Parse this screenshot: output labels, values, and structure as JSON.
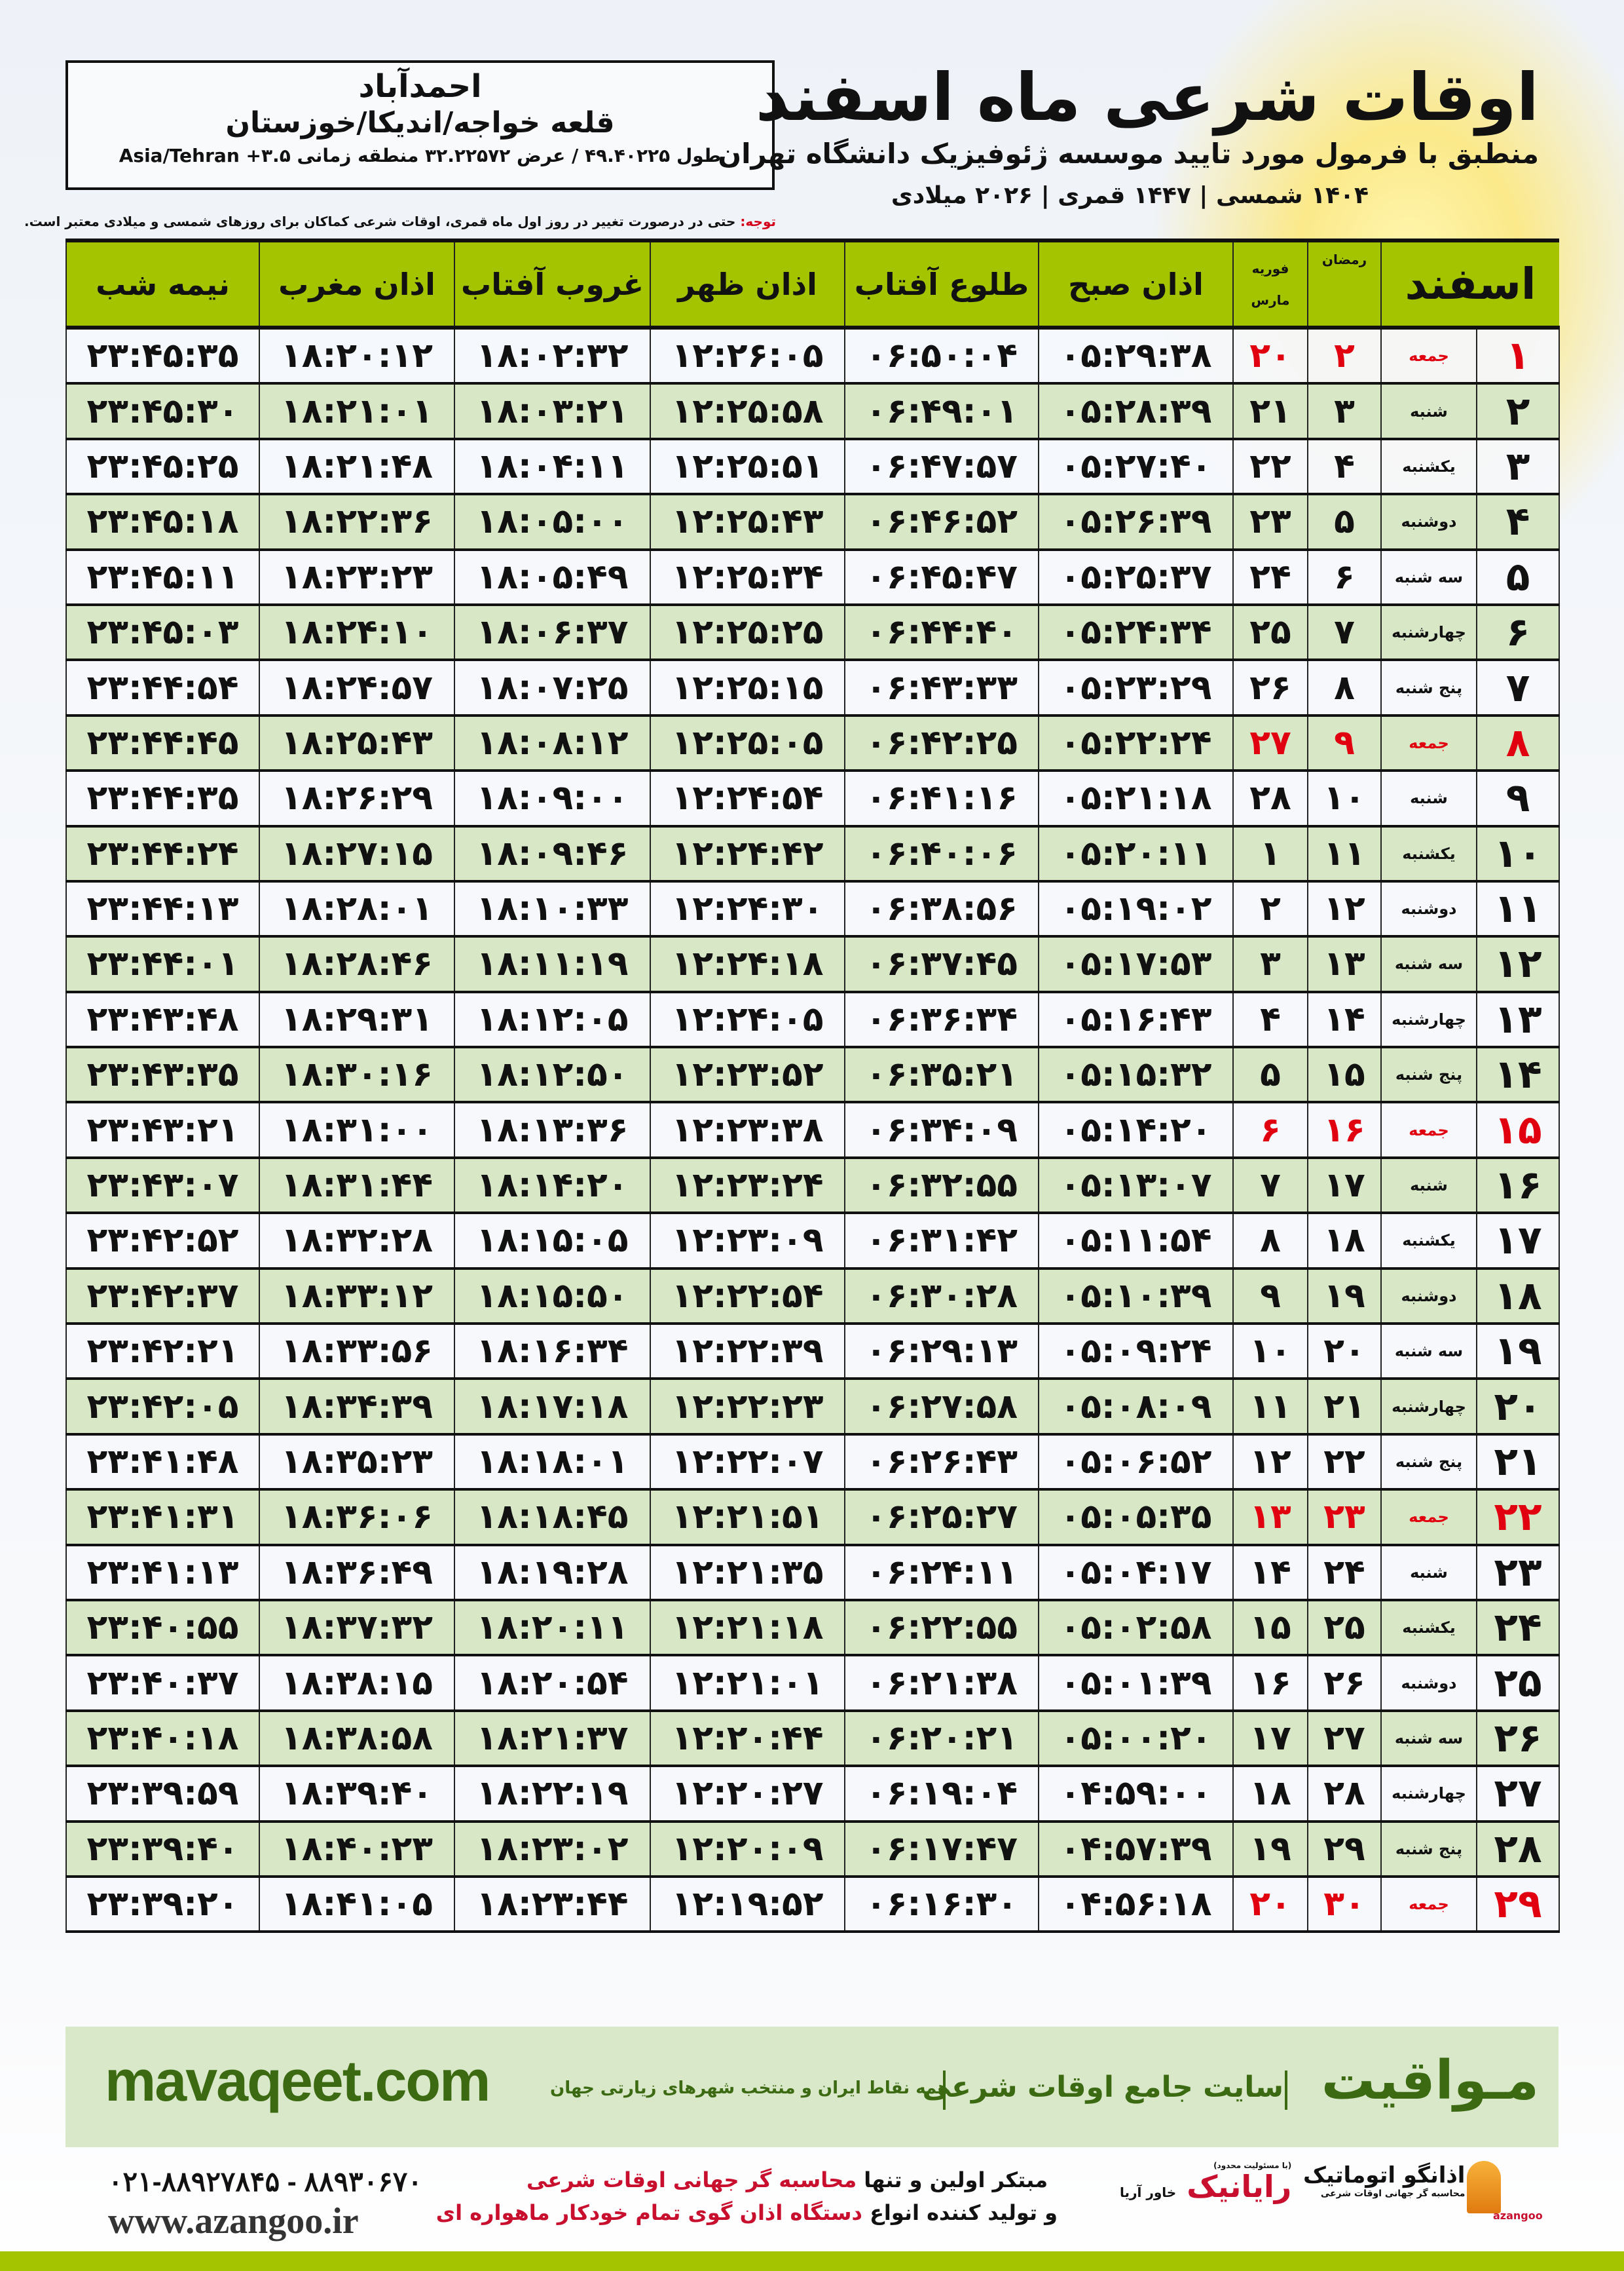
{
  "header": {
    "title": "اوقات شرعی ماه اسفند",
    "subtitle": "منطبق با فرمول مورد تایید موسسه ژئوفیزیک دانشگاه تهران",
    "dates": "۱۴۰۴ شمسی | ۱۴۴۷ قمری | ۲۰۲۶ میلادی"
  },
  "location": {
    "city": "احمدآباد",
    "region": "قلعه خواجه/اندیکا/خوزستان",
    "coords": "طول ۴۹.۴۰۲۲۵ / عرض ۳۲.۲۲۵۷۲ منطقه زمانی ۳.۵+ Asia/Tehran"
  },
  "note": {
    "label": "توجه:",
    "text": " حتی در درصورت تغییر در روز اول ماه قمری، اوقات شرعی کماکان برای روزهای شمسی و میلادی معتبر است."
  },
  "colors": {
    "header_green": "#a4c400",
    "row_green": "#d8e7c6",
    "friday_red": "#e10010",
    "brand_green": "#3b6a12"
  },
  "table": {
    "columns": {
      "month": "اسفند",
      "ramadan": "رمضان",
      "feb": "فوریه",
      "march": "مارس",
      "fajr": "اذان صبح",
      "sunrise": "طلوع آفتاب",
      "dhuhr": "اذان ظهر",
      "sunset": "غروب آفتاب",
      "maghrib": "اذان مغرب",
      "midnight": "نیمه شب"
    },
    "rows": [
      {
        "day": "۱",
        "weekday": "جمعه",
        "ramadan": "۲",
        "greg": "۲۰",
        "fajr": "۰۵:۲۹:۳۸",
        "sunrise": "۰۶:۵۰:۰۴",
        "dhuhr": "۱۲:۲۶:۰۵",
        "sunset": "۱۸:۰۲:۳۲",
        "maghrib": "۱۸:۲۰:۱۲",
        "midnight": "۲۳:۴۵:۳۵",
        "friday": true
      },
      {
        "day": "۲",
        "weekday": "شنبه",
        "ramadan": "۳",
        "greg": "۲۱",
        "fajr": "۰۵:۲۸:۳۹",
        "sunrise": "۰۶:۴۹:۰۱",
        "dhuhr": "۱۲:۲۵:۵۸",
        "sunset": "۱۸:۰۳:۲۱",
        "maghrib": "۱۸:۲۱:۰۱",
        "midnight": "۲۳:۴۵:۳۰"
      },
      {
        "day": "۳",
        "weekday": "یکشنبه",
        "ramadan": "۴",
        "greg": "۲۲",
        "fajr": "۰۵:۲۷:۴۰",
        "sunrise": "۰۶:۴۷:۵۷",
        "dhuhr": "۱۲:۲۵:۵۱",
        "sunset": "۱۸:۰۴:۱۱",
        "maghrib": "۱۸:۲۱:۴۸",
        "midnight": "۲۳:۴۵:۲۵"
      },
      {
        "day": "۴",
        "weekday": "دوشنبه",
        "ramadan": "۵",
        "greg": "۲۳",
        "fajr": "۰۵:۲۶:۳۹",
        "sunrise": "۰۶:۴۶:۵۲",
        "dhuhr": "۱۲:۲۵:۴۳",
        "sunset": "۱۸:۰۵:۰۰",
        "maghrib": "۱۸:۲۲:۳۶",
        "midnight": "۲۳:۴۵:۱۸"
      },
      {
        "day": "۵",
        "weekday": "سه شنبه",
        "ramadan": "۶",
        "greg": "۲۴",
        "fajr": "۰۵:۲۵:۳۷",
        "sunrise": "۰۶:۴۵:۴۷",
        "dhuhr": "۱۲:۲۵:۳۴",
        "sunset": "۱۸:۰۵:۴۹",
        "maghrib": "۱۸:۲۳:۲۳",
        "midnight": "۲۳:۴۵:۱۱"
      },
      {
        "day": "۶",
        "weekday": "چهارشنبه",
        "ramadan": "۷",
        "greg": "۲۵",
        "fajr": "۰۵:۲۴:۳۴",
        "sunrise": "۰۶:۴۴:۴۰",
        "dhuhr": "۱۲:۲۵:۲۵",
        "sunset": "۱۸:۰۶:۳۷",
        "maghrib": "۱۸:۲۴:۱۰",
        "midnight": "۲۳:۴۵:۰۳"
      },
      {
        "day": "۷",
        "weekday": "پنج شنبه",
        "ramadan": "۸",
        "greg": "۲۶",
        "fajr": "۰۵:۲۳:۲۹",
        "sunrise": "۰۶:۴۳:۳۳",
        "dhuhr": "۱۲:۲۵:۱۵",
        "sunset": "۱۸:۰۷:۲۵",
        "maghrib": "۱۸:۲۴:۵۷",
        "midnight": "۲۳:۴۴:۵۴"
      },
      {
        "day": "۸",
        "weekday": "جمعه",
        "ramadan": "۹",
        "greg": "۲۷",
        "fajr": "۰۵:۲۲:۲۴",
        "sunrise": "۰۶:۴۲:۲۵",
        "dhuhr": "۱۲:۲۵:۰۵",
        "sunset": "۱۸:۰۸:۱۲",
        "maghrib": "۱۸:۲۵:۴۳",
        "midnight": "۲۳:۴۴:۴۵",
        "friday": true
      },
      {
        "day": "۹",
        "weekday": "شنبه",
        "ramadan": "۱۰",
        "greg": "۲۸",
        "fajr": "۰۵:۲۱:۱۸",
        "sunrise": "۰۶:۴۱:۱۶",
        "dhuhr": "۱۲:۲۴:۵۴",
        "sunset": "۱۸:۰۹:۰۰",
        "maghrib": "۱۸:۲۶:۲۹",
        "midnight": "۲۳:۴۴:۳۵"
      },
      {
        "day": "۱۰",
        "weekday": "یکشنبه",
        "ramadan": "۱۱",
        "greg": "۱",
        "fajr": "۰۵:۲۰:۱۱",
        "sunrise": "۰۶:۴۰:۰۶",
        "dhuhr": "۱۲:۲۴:۴۲",
        "sunset": "۱۸:۰۹:۴۶",
        "maghrib": "۱۸:۲۷:۱۵",
        "midnight": "۲۳:۴۴:۲۴"
      },
      {
        "day": "۱۱",
        "weekday": "دوشنبه",
        "ramadan": "۱۲",
        "greg": "۲",
        "fajr": "۰۵:۱۹:۰۲",
        "sunrise": "۰۶:۳۸:۵۶",
        "dhuhr": "۱۲:۲۴:۳۰",
        "sunset": "۱۸:۱۰:۳۳",
        "maghrib": "۱۸:۲۸:۰۱",
        "midnight": "۲۳:۴۴:۱۳"
      },
      {
        "day": "۱۲",
        "weekday": "سه شنبه",
        "ramadan": "۱۳",
        "greg": "۳",
        "fajr": "۰۵:۱۷:۵۳",
        "sunrise": "۰۶:۳۷:۴۵",
        "dhuhr": "۱۲:۲۴:۱۸",
        "sunset": "۱۸:۱۱:۱۹",
        "maghrib": "۱۸:۲۸:۴۶",
        "midnight": "۲۳:۴۴:۰۱"
      },
      {
        "day": "۱۳",
        "weekday": "چهارشنبه",
        "ramadan": "۱۴",
        "greg": "۴",
        "fajr": "۰۵:۱۶:۴۳",
        "sunrise": "۰۶:۳۶:۳۴",
        "dhuhr": "۱۲:۲۴:۰۵",
        "sunset": "۱۸:۱۲:۰۵",
        "maghrib": "۱۸:۲۹:۳۱",
        "midnight": "۲۳:۴۳:۴۸"
      },
      {
        "day": "۱۴",
        "weekday": "پنج شنبه",
        "ramadan": "۱۵",
        "greg": "۵",
        "fajr": "۰۵:۱۵:۳۲",
        "sunrise": "۰۶:۳۵:۲۱",
        "dhuhr": "۱۲:۲۳:۵۲",
        "sunset": "۱۸:۱۲:۵۰",
        "maghrib": "۱۸:۳۰:۱۶",
        "midnight": "۲۳:۴۳:۳۵"
      },
      {
        "day": "۱۵",
        "weekday": "جمعه",
        "ramadan": "۱۶",
        "greg": "۶",
        "fajr": "۰۵:۱۴:۲۰",
        "sunrise": "۰۶:۳۴:۰۹",
        "dhuhr": "۱۲:۲۳:۳۸",
        "sunset": "۱۸:۱۳:۳۶",
        "maghrib": "۱۸:۳۱:۰۰",
        "midnight": "۲۳:۴۳:۲۱",
        "friday": true
      },
      {
        "day": "۱۶",
        "weekday": "شنبه",
        "ramadan": "۱۷",
        "greg": "۷",
        "fajr": "۰۵:۱۳:۰۷",
        "sunrise": "۰۶:۳۲:۵۵",
        "dhuhr": "۱۲:۲۳:۲۴",
        "sunset": "۱۸:۱۴:۲۰",
        "maghrib": "۱۸:۳۱:۴۴",
        "midnight": "۲۳:۴۳:۰۷"
      },
      {
        "day": "۱۷",
        "weekday": "یکشنبه",
        "ramadan": "۱۸",
        "greg": "۸",
        "fajr": "۰۵:۱۱:۵۴",
        "sunrise": "۰۶:۳۱:۴۲",
        "dhuhr": "۱۲:۲۳:۰۹",
        "sunset": "۱۸:۱۵:۰۵",
        "maghrib": "۱۸:۳۲:۲۸",
        "midnight": "۲۳:۴۲:۵۲"
      },
      {
        "day": "۱۸",
        "weekday": "دوشنبه",
        "ramadan": "۱۹",
        "greg": "۹",
        "fajr": "۰۵:۱۰:۳۹",
        "sunrise": "۰۶:۳۰:۲۸",
        "dhuhr": "۱۲:۲۲:۵۴",
        "sunset": "۱۸:۱۵:۵۰",
        "maghrib": "۱۸:۳۳:۱۲",
        "midnight": "۲۳:۴۲:۳۷"
      },
      {
        "day": "۱۹",
        "weekday": "سه شنبه",
        "ramadan": "۲۰",
        "greg": "۱۰",
        "fajr": "۰۵:۰۹:۲۴",
        "sunrise": "۰۶:۲۹:۱۳",
        "dhuhr": "۱۲:۲۲:۳۹",
        "sunset": "۱۸:۱۶:۳۴",
        "maghrib": "۱۸:۳۳:۵۶",
        "midnight": "۲۳:۴۲:۲۱"
      },
      {
        "day": "۲۰",
        "weekday": "چهارشنبه",
        "ramadan": "۲۱",
        "greg": "۱۱",
        "fajr": "۰۵:۰۸:۰۹",
        "sunrise": "۰۶:۲۷:۵۸",
        "dhuhr": "۱۲:۲۲:۲۳",
        "sunset": "۱۸:۱۷:۱۸",
        "maghrib": "۱۸:۳۴:۳۹",
        "midnight": "۲۳:۴۲:۰۵"
      },
      {
        "day": "۲۱",
        "weekday": "پنج شنبه",
        "ramadan": "۲۲",
        "greg": "۱۲",
        "fajr": "۰۵:۰۶:۵۲",
        "sunrise": "۰۶:۲۶:۴۳",
        "dhuhr": "۱۲:۲۲:۰۷",
        "sunset": "۱۸:۱۸:۰۱",
        "maghrib": "۱۸:۳۵:۲۳",
        "midnight": "۲۳:۴۱:۴۸"
      },
      {
        "day": "۲۲",
        "weekday": "جمعه",
        "ramadan": "۲۳",
        "greg": "۱۳",
        "fajr": "۰۵:۰۵:۳۵",
        "sunrise": "۰۶:۲۵:۲۷",
        "dhuhr": "۱۲:۲۱:۵۱",
        "sunset": "۱۸:۱۸:۴۵",
        "maghrib": "۱۸:۳۶:۰۶",
        "midnight": "۲۳:۴۱:۳۱",
        "friday": true
      },
      {
        "day": "۲۳",
        "weekday": "شنبه",
        "ramadan": "۲۴",
        "greg": "۱۴",
        "fajr": "۰۵:۰۴:۱۷",
        "sunrise": "۰۶:۲۴:۱۱",
        "dhuhr": "۱۲:۲۱:۳۵",
        "sunset": "۱۸:۱۹:۲۸",
        "maghrib": "۱۸:۳۶:۴۹",
        "midnight": "۲۳:۴۱:۱۳"
      },
      {
        "day": "۲۴",
        "weekday": "یکشنبه",
        "ramadan": "۲۵",
        "greg": "۱۵",
        "fajr": "۰۵:۰۲:۵۸",
        "sunrise": "۰۶:۲۲:۵۵",
        "dhuhr": "۱۲:۲۱:۱۸",
        "sunset": "۱۸:۲۰:۱۱",
        "maghrib": "۱۸:۳۷:۳۲",
        "midnight": "۲۳:۴۰:۵۵"
      },
      {
        "day": "۲۵",
        "weekday": "دوشنبه",
        "ramadan": "۲۶",
        "greg": "۱۶",
        "fajr": "۰۵:۰۱:۳۹",
        "sunrise": "۰۶:۲۱:۳۸",
        "dhuhr": "۱۲:۲۱:۰۱",
        "sunset": "۱۸:۲۰:۵۴",
        "maghrib": "۱۸:۳۸:۱۵",
        "midnight": "۲۳:۴۰:۳۷"
      },
      {
        "day": "۲۶",
        "weekday": "سه شنبه",
        "ramadan": "۲۷",
        "greg": "۱۷",
        "fajr": "۰۵:۰۰:۲۰",
        "sunrise": "۰۶:۲۰:۲۱",
        "dhuhr": "۱۲:۲۰:۴۴",
        "sunset": "۱۸:۲۱:۳۷",
        "maghrib": "۱۸:۳۸:۵۸",
        "midnight": "۲۳:۴۰:۱۸"
      },
      {
        "day": "۲۷",
        "weekday": "چهارشنبه",
        "ramadan": "۲۸",
        "greg": "۱۸",
        "fajr": "۰۴:۵۹:۰۰",
        "sunrise": "۰۶:۱۹:۰۴",
        "dhuhr": "۱۲:۲۰:۲۷",
        "sunset": "۱۸:۲۲:۱۹",
        "maghrib": "۱۸:۳۹:۴۰",
        "midnight": "۲۳:۳۹:۵۹"
      },
      {
        "day": "۲۸",
        "weekday": "پنج شنبه",
        "ramadan": "۲۹",
        "greg": "۱۹",
        "fajr": "۰۴:۵۷:۳۹",
        "sunrise": "۰۶:۱۷:۴۷",
        "dhuhr": "۱۲:۲۰:۰۹",
        "sunset": "۱۸:۲۳:۰۲",
        "maghrib": "۱۸:۴۰:۲۳",
        "midnight": "۲۳:۳۹:۴۰"
      },
      {
        "day": "۲۹",
        "weekday": "جمعه",
        "ramadan": "۳۰",
        "greg": "۲۰",
        "fajr": "۰۴:۵۶:۱۸",
        "sunrise": "۰۶:۱۶:۳۰",
        "dhuhr": "۱۲:۱۹:۵۲",
        "sunset": "۱۸:۲۳:۴۴",
        "maghrib": "۱۸:۴۱:۰۵",
        "midnight": "۲۳:۳۹:۲۰",
        "friday": true
      }
    ]
  },
  "ad": {
    "brand": "مـواقیت",
    "slogan": "سایت جامع اوقات شرعی",
    "sub": "همه نقاط ایران و منتخب شهرهای زیارتی جهان",
    "site": "mavaqeet.com"
  },
  "footer": {
    "phone": "۰۲۱-۸۸۹۲۷۸۴۵ - ۸۸۹۳۰۶۷۰",
    "web": "www.azangoo.ir",
    "promo1_a": "مبتکر اولین و تنها ",
    "promo1_b": "محاسبه گر جهانی اوقات شرعی",
    "promo2_a": "و تولید کننده انواع ",
    "promo2_b": "دستگاه اذان گوی تمام خودکار ماهواره ای",
    "logo_azangoo": "اذانگو اتوماتیک",
    "logo_azangoo_sub": "محاسبه گر جهانی اوقات شرعی",
    "logo_azangoo_en": "azangoo",
    "logo_rayanik": "رایانیک",
    "logo_rayanik_side": "خاور آریا",
    "logo_rayanik_small": "(با مسئولیت محدود)"
  }
}
